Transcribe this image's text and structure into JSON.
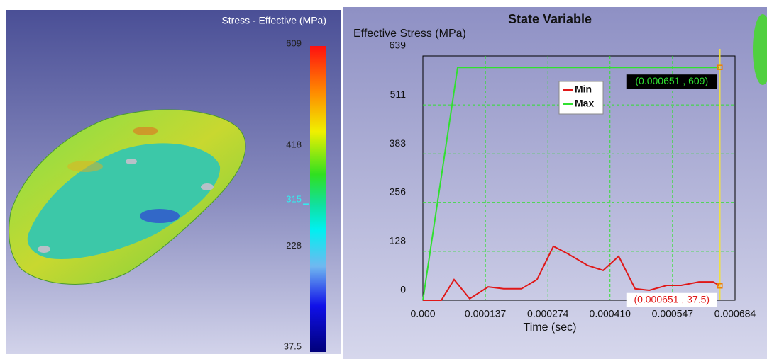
{
  "viewport": {
    "legend_title": "Stress - Effective (MPa)",
    "colorbar": {
      "lim": [
        37.5,
        609
      ],
      "ticks": [
        609,
        418,
        228,
        37.5
      ],
      "current_value": 315
    }
  },
  "chart_data": {
    "type": "line",
    "title": "State Variable",
    "ylabel": "Effective Stress (MPa)",
    "xlabel": "Time (sec)",
    "xlim": [
      0,
      0.000684
    ],
    "ylim": [
      0,
      639
    ],
    "xticks": [
      {
        "value": 0,
        "label": "0.000"
      },
      0.000137,
      0.000274,
      {
        "value": 0.00041,
        "label": "0.000410"
      },
      0.000547,
      0.000684
    ],
    "yticks": [
      0,
      128,
      256,
      383,
      511,
      639
    ],
    "grid": true,
    "legend": "top center",
    "series": [
      {
        "name": "Min",
        "color": "#e01818",
        "x": [
          0,
          4.04e-05,
          6.84e-05,
          0.0001026,
          0.000143,
          0.000177,
          0.000216,
          0.00025,
          0.000286,
          0.000317,
          0.000361,
          0.000395,
          0.000429,
          0.000465,
          0.000496,
          0.000535,
          0.000566,
          0.000605,
          0.000636,
          0.000651
        ],
        "values": [
          0,
          0,
          54,
          4,
          35,
          30,
          30,
          54,
          141,
          122,
          91,
          78,
          115,
          30,
          26,
          39,
          39,
          48,
          48,
          37.5
        ]
      },
      {
        "name": "Max",
        "color": "#30e030",
        "x": [
          0,
          7.62e-05,
          0.000651
        ],
        "values": [
          0,
          609,
          609
        ]
      }
    ],
    "annotations": [
      {
        "text": "(0.000651 , 609)",
        "x": 0.000651,
        "y": 609,
        "color": "#30e030",
        "background": "#000000"
      },
      {
        "text": "(0.000651 , 37.5)",
        "x": 0.000651,
        "y": 37.5,
        "color": "#e01818",
        "background": "#ffffff"
      }
    ]
  }
}
